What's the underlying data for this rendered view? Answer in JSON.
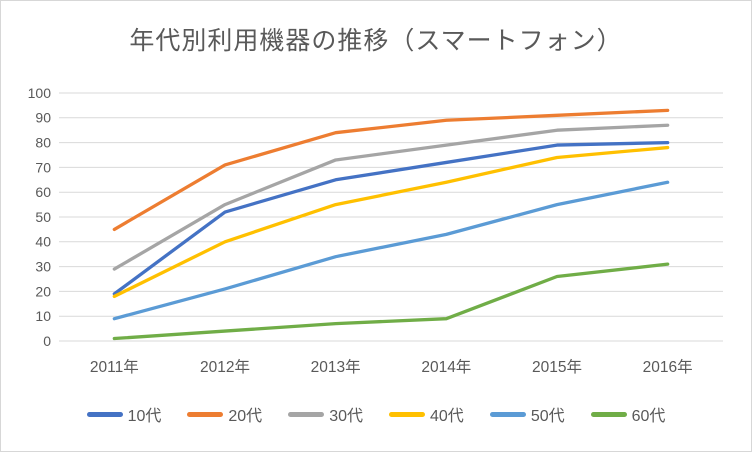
{
  "canvas": {
    "background": "#ffffff",
    "border_color": "#d7d7d7"
  },
  "chart_data": {
    "type": "line",
    "title": "年代別利用機器の推移（スマートフォン）",
    "categories": [
      "2011年",
      "2012年",
      "2013年",
      "2014年",
      "2015年",
      "2016年"
    ],
    "series": [
      {
        "name": "10代",
        "color": "#4472C4",
        "values": [
          19,
          52,
          65,
          72,
          79,
          80
        ]
      },
      {
        "name": "20代",
        "color": "#ED7D31",
        "values": [
          45,
          71,
          84,
          89,
          91,
          93
        ]
      },
      {
        "name": "30代",
        "color": "#A5A5A5",
        "values": [
          29,
          55,
          73,
          79,
          85,
          87
        ]
      },
      {
        "name": "40代",
        "color": "#FFC000",
        "values": [
          18,
          40,
          55,
          64,
          74,
          78
        ]
      },
      {
        "name": "50代",
        "color": "#5B9BD5",
        "values": [
          9,
          21,
          34,
          43,
          55,
          64
        ]
      },
      {
        "name": "60代",
        "color": "#70AD47",
        "values": [
          1,
          4,
          7,
          9,
          26,
          31
        ]
      }
    ],
    "ylim": [
      0,
      100
    ],
    "ytick_step": 10,
    "ytick_labels": [
      "0",
      "10",
      "20",
      "30",
      "40",
      "50",
      "60",
      "70",
      "80",
      "90",
      "100"
    ],
    "xlabel": "",
    "ylabel": "",
    "grid": true,
    "legend_position": "bottom",
    "text_color": "#595959",
    "gridline_color": "#D9D9D9"
  }
}
